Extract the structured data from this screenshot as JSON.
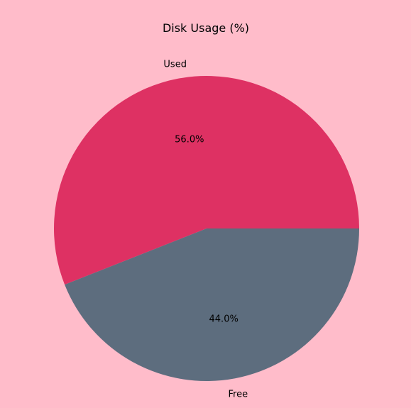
{
  "chart_data": {
    "type": "pie",
    "title": "Disk Usage (%)",
    "slices": [
      {
        "label": "Used",
        "value": 56.0,
        "pct_label": "56.0%",
        "color": "#DE3163"
      },
      {
        "label": "Free",
        "value": 44.0,
        "pct_label": "44.0%",
        "color": "#5D6D7E"
      }
    ],
    "start_angle_deg": 0,
    "direction": "counterclockwise",
    "background": "#FFBCCA"
  }
}
